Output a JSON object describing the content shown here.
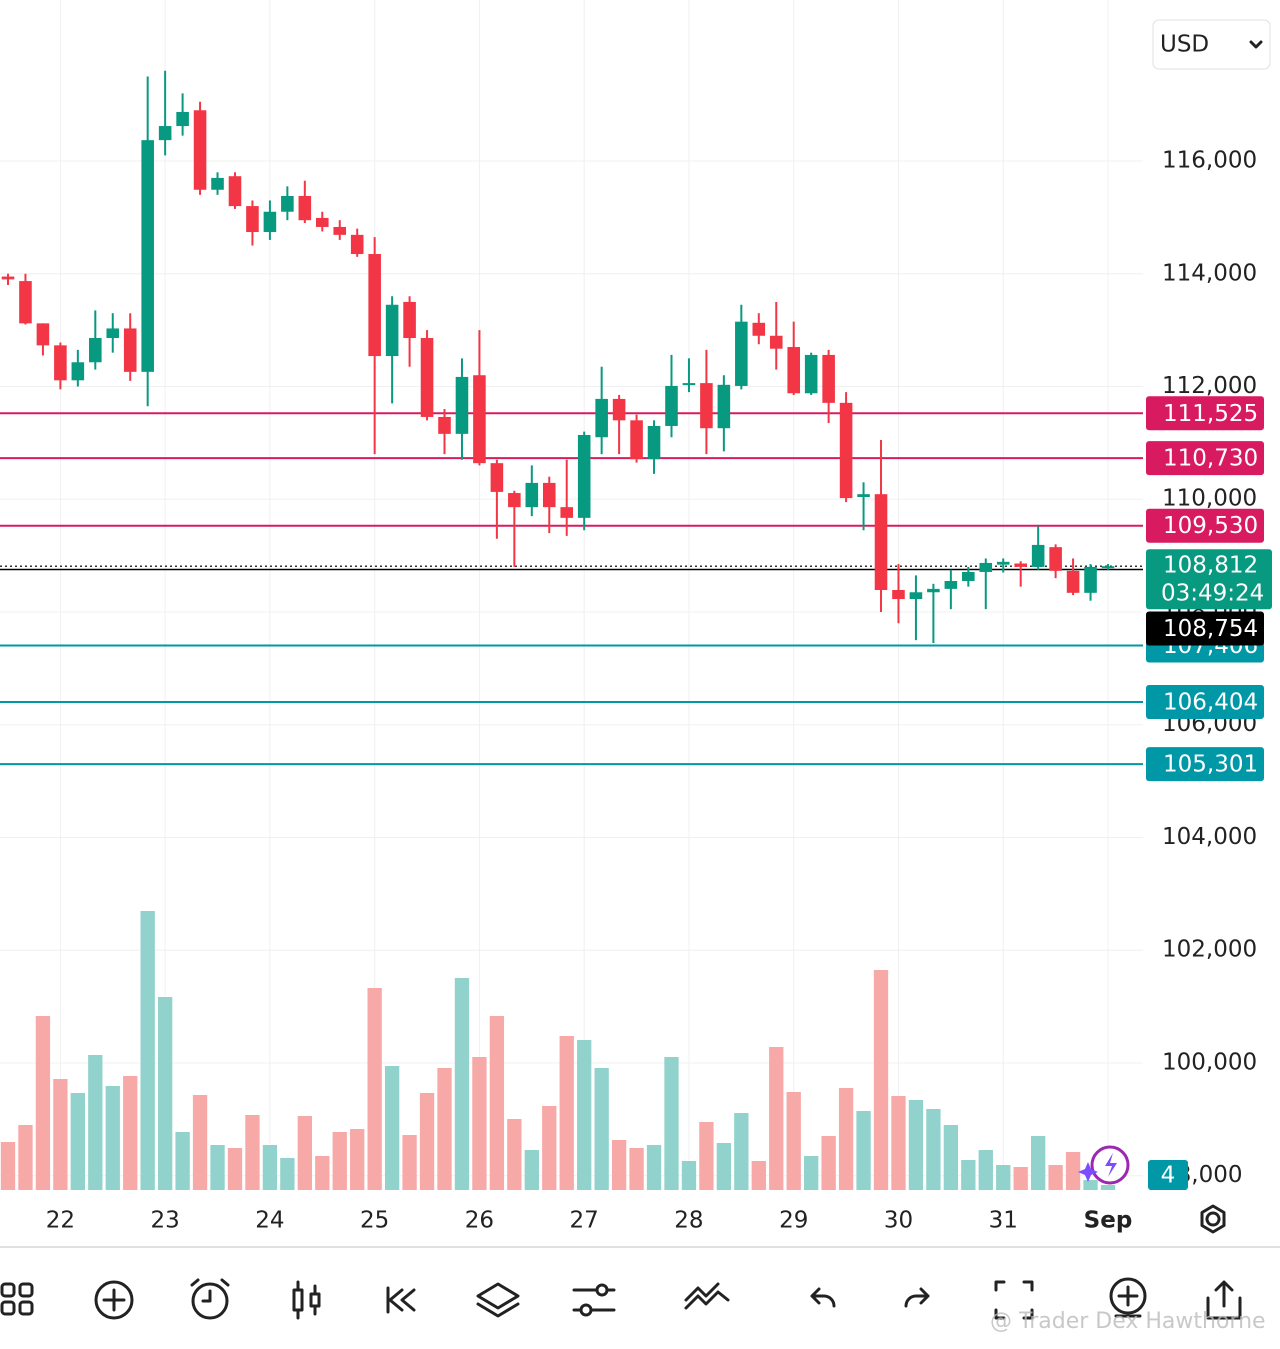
{
  "ui": {
    "currency": "USD",
    "watermark": "@ Trader Dex Hawthorne",
    "badge": "4"
  },
  "chart_data": {
    "type": "candlestick",
    "categories": [
      null,
      null,
      null,
      "22",
      null,
      null,
      null,
      null,
      null,
      "23",
      null,
      null,
      null,
      null,
      null,
      "24",
      null,
      null,
      null,
      null,
      null,
      "25",
      null,
      null,
      null,
      null,
      null,
      "26",
      null,
      null,
      null,
      null,
      null,
      "27",
      null,
      null,
      null,
      null,
      null,
      "28",
      null,
      null,
      null,
      null,
      null,
      "29",
      null,
      null,
      null,
      null,
      null,
      "30",
      null,
      null,
      null,
      null,
      null,
      "31",
      null,
      null,
      null,
      null,
      null,
      "Sep"
    ],
    "open": [
      113950,
      113870,
      113120,
      112730,
      112110,
      112430,
      112860,
      113030,
      112260,
      116370,
      116620,
      116900,
      115490,
      115730,
      115200,
      114740,
      115100,
      115380,
      114990,
      114830,
      114690,
      114350,
      112540,
      113500,
      112860,
      111460,
      111160,
      112200,
      110640,
      110110,
      109860,
      110290,
      109860,
      109670,
      111100,
      111780,
      111400,
      110710,
      111300,
      112040,
      112060,
      111260,
      112010,
      113130,
      112900,
      112700,
      111880,
      112560,
      111710,
      110040,
      110090,
      108390,
      108230,
      108350,
      108410,
      108550,
      108710,
      108840,
      108860,
      108800,
      109150,
      108730,
      108340,
      108800
    ],
    "high": [
      114000,
      114000,
      113120,
      112780,
      112650,
      113350,
      113300,
      113300,
      117500,
      117600,
      117200,
      117050,
      115800,
      115800,
      115300,
      115300,
      115550,
      115650,
      115100,
      114950,
      114800,
      114650,
      113600,
      113600,
      113000,
      111600,
      112500,
      113000,
      110700,
      110150,
      110600,
      110400,
      110700,
      111200,
      112350,
      111850,
      111500,
      111400,
      112560,
      112500,
      112650,
      112200,
      113450,
      113300,
      113500,
      113150,
      112600,
      112650,
      111900,
      110300,
      111050,
      108850,
      108650,
      108500,
      108750,
      108800,
      108950,
      108950,
      108900,
      109520,
      109200,
      108950,
      108850,
      108850
    ],
    "low": [
      113800,
      113100,
      112550,
      111950,
      112000,
      112300,
      112600,
      112100,
      111650,
      116100,
      116450,
      115400,
      115400,
      115150,
      114500,
      114600,
      114950,
      114900,
      114750,
      114600,
      114300,
      110800,
      111700,
      112350,
      111400,
      110800,
      110700,
      110600,
      109300,
      108800,
      109700,
      109400,
      109350,
      109450,
      110800,
      110800,
      110650,
      110450,
      111100,
      111900,
      110800,
      110850,
      111950,
      112750,
      112300,
      111850,
      111850,
      111350,
      109950,
      109450,
      108000,
      107800,
      107500,
      107450,
      108050,
      108450,
      108050,
      108700,
      108450,
      108750,
      108600,
      108300,
      108200,
      108750
    ],
    "close": [
      113900,
      113120,
      112730,
      112110,
      112430,
      112860,
      113030,
      112260,
      116370,
      116620,
      116870,
      115490,
      115700,
      115200,
      114740,
      115100,
      115380,
      114950,
      114830,
      114690,
      114350,
      112540,
      113450,
      112860,
      111460,
      111160,
      112170,
      110640,
      110130,
      109860,
      110290,
      109860,
      109670,
      111140,
      111780,
      111400,
      110710,
      111300,
      112010,
      112060,
      111260,
      112030,
      113150,
      112900,
      112670,
      111880,
      112560,
      111710,
      110020,
      110090,
      108390,
      108230,
      108350,
      108410,
      108550,
      108710,
      108870,
      108890,
      108800,
      109190,
      108730,
      108340,
      108800,
      108812
    ],
    "volume": [
      48,
      65,
      174,
      111,
      97,
      135,
      104,
      114,
      279,
      193,
      58,
      95,
      45,
      42,
      75,
      45,
      32,
      74,
      34,
      58,
      61,
      202,
      124,
      55,
      97,
      122,
      212,
      133,
      174,
      71,
      40,
      84,
      154,
      150,
      122,
      50,
      42,
      45,
      133,
      29,
      68,
      47,
      77,
      29,
      143,
      98,
      34,
      54,
      102,
      79,
      220,
      94,
      90,
      81,
      65,
      30,
      40,
      25,
      23,
      54,
      25,
      38,
      10,
      5
    ],
    "volume_ylim": [
      0,
      1190
    ],
    "ylim": [
      97747,
      118856
    ],
    "yticks": [
      {
        "value": 98000,
        "label": "98,000"
      },
      {
        "value": 100000,
        "label": "100,000"
      },
      {
        "value": 102000,
        "label": "102,000"
      },
      {
        "value": 104000,
        "label": "104,000"
      },
      {
        "value": 106000,
        "label": "106,000"
      },
      {
        "value": 108000,
        "label": "108,000"
      },
      {
        "value": 110000,
        "label": "110,000"
      },
      {
        "value": 112000,
        "label": "112,000"
      },
      {
        "value": 114000,
        "label": "114,000"
      },
      {
        "value": 116000,
        "label": "116,000"
      }
    ],
    "grid": true,
    "up_color": "#089981",
    "down_color": "#f23645",
    "up_volume_color": "#92d2cc",
    "down_volume_color": "#f7a9a7",
    "price_lines": [
      {
        "value": 111525,
        "label": "111,525",
        "color": "#d81b60"
      },
      {
        "value": 110730,
        "label": "110,730",
        "color": "#d81b60"
      },
      {
        "value": 109530,
        "label": "109,530",
        "color": "#d81b60"
      },
      {
        "value": 107406,
        "label": "107,406",
        "color": "#0097a7"
      },
      {
        "value": 106404,
        "label": "106,404",
        "color": "#0097a7"
      },
      {
        "value": 105301,
        "label": "105,301",
        "color": "#0097a7"
      }
    ],
    "current_price": {
      "value": 108812,
      "label": "108,812",
      "countdown": "03:49:24",
      "color": "#089981"
    },
    "last_price": {
      "value": 108754,
      "label": "108,754",
      "color": "#000000"
    }
  }
}
